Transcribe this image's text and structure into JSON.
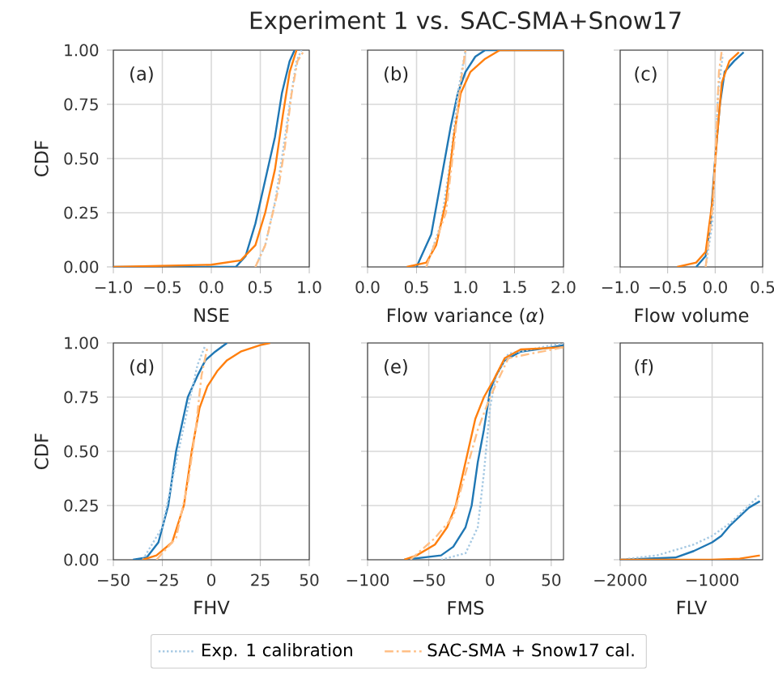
{
  "chart_data": [
    {
      "type": "line",
      "ylabel": "CDF",
      "xlabel": "NSE",
      "annotations": [
        "(a)"
      ],
      "grid": true,
      "xlim": [
        -1,
        1
      ],
      "xticks": [
        {
          "value": -1,
          "label": "−1.0"
        },
        {
          "value": -0.5,
          "label": "−0.5"
        },
        {
          "value": 0,
          "label": "0.0"
        },
        {
          "value": 0.5,
          "label": "0.5"
        },
        {
          "value": 1,
          "label": "1.0"
        }
      ],
      "ylim": [
        0,
        1
      ],
      "yticks": [
        {
          "value": 0,
          "label": "0.00"
        },
        {
          "value": 0.25,
          "label": "0.25"
        },
        {
          "value": 0.5,
          "label": "0.50"
        },
        {
          "value": 0.75,
          "label": "0.75"
        },
        {
          "value": 1,
          "label": "1.00"
        }
      ],
      "series": [
        {
          "color": "#1f77b4",
          "line_style": "solid",
          "x": [
            -1,
            0.25,
            0.35,
            0.45,
            0.55,
            0.65,
            0.72,
            0.8,
            0.85
          ],
          "values": [
            0,
            0,
            0.05,
            0.2,
            0.4,
            0.6,
            0.8,
            0.95,
            1
          ]
        },
        {
          "color": "#a6c9e3",
          "line_style": "dotted",
          "x": [
            0.45,
            0.55,
            0.65,
            0.72,
            0.8,
            0.87,
            0.92
          ],
          "values": [
            0,
            0.1,
            0.3,
            0.5,
            0.75,
            0.95,
            1
          ]
        },
        {
          "color": "#ff7f0e",
          "line_style": "solid",
          "x": [
            -1,
            0,
            0.3,
            0.45,
            0.55,
            0.65,
            0.73,
            0.8,
            0.87
          ],
          "values": [
            0,
            0.01,
            0.03,
            0.1,
            0.25,
            0.45,
            0.7,
            0.9,
            1
          ]
        },
        {
          "color": "#ffbf86",
          "line_style": "dashed",
          "x": [
            0.45,
            0.55,
            0.68,
            0.75,
            0.82,
            0.88,
            0.95
          ],
          "values": [
            0,
            0.1,
            0.35,
            0.55,
            0.8,
            0.95,
            1
          ]
        }
      ]
    },
    {
      "type": "line",
      "title": "Experiment 1 vs. SAC-SMA+Snow17",
      "xlabel": "Flow variance (*α*)",
      "annotations": [
        "(b)"
      ],
      "grid": true,
      "tick_labels": "x",
      "xlim": [
        0,
        2
      ],
      "xticks": [
        {
          "value": 0,
          "label": "0.0"
        },
        {
          "value": 0.5,
          "label": "0.5"
        },
        {
          "value": 1,
          "label": "1.0"
        },
        {
          "value": 1.5,
          "label": "1.5"
        },
        {
          "value": 2,
          "label": "2.0"
        }
      ],
      "ylim": [
        0,
        1
      ],
      "yticks": [
        {
          "value": 0,
          "label": null
        },
        {
          "value": 0.25,
          "label": null
        },
        {
          "value": 0.5,
          "label": null
        },
        {
          "value": 0.75,
          "label": null
        },
        {
          "value": 1,
          "label": null
        }
      ],
      "series": [
        {
          "color": "#1f77b4",
          "line_style": "solid",
          "x": [
            0.5,
            0.55,
            0.65,
            0.75,
            0.85,
            0.92,
            1.0,
            1.1,
            1.2,
            2
          ],
          "values": [
            0,
            0.05,
            0.15,
            0.4,
            0.65,
            0.8,
            0.9,
            0.97,
            1,
            1
          ]
        },
        {
          "color": "#a6c9e3",
          "line_style": "dotted",
          "x": [
            0.6,
            0.75,
            0.85,
            0.92,
            1.0
          ],
          "values": [
            0,
            0.2,
            0.5,
            0.8,
            1
          ]
        },
        {
          "color": "#ff7f0e",
          "line_style": "solid",
          "x": [
            0.4,
            0.6,
            0.7,
            0.8,
            0.88,
            0.95,
            1.05,
            1.2,
            1.35,
            2
          ],
          "values": [
            0,
            0.02,
            0.1,
            0.3,
            0.6,
            0.8,
            0.9,
            0.96,
            1,
            1
          ]
        },
        {
          "color": "#ffbf86",
          "line_style": "dashed",
          "x": [
            0.6,
            0.8,
            0.88,
            0.95,
            1.0
          ],
          "values": [
            0,
            0.25,
            0.55,
            0.85,
            1
          ]
        }
      ]
    },
    {
      "type": "line",
      "xlabel": "Flow volume",
      "annotations": [
        "(c)"
      ],
      "grid": true,
      "tick_labels": "x",
      "xlim": [
        -1,
        0.5
      ],
      "xticks": [
        {
          "value": -1,
          "label": "−1.0"
        },
        {
          "value": -0.5,
          "label": "−0.5"
        },
        {
          "value": 0,
          "label": "0.0"
        },
        {
          "value": 0.5,
          "label": "0.5"
        }
      ],
      "ylim": [
        0,
        1
      ],
      "yticks": [
        {
          "value": 0,
          "label": null
        },
        {
          "value": 0.25,
          "label": null
        },
        {
          "value": 0.5,
          "label": null
        },
        {
          "value": 0.75,
          "label": null
        },
        {
          "value": 1,
          "label": null
        }
      ],
      "series": [
        {
          "color": "#1f77b4",
          "line_style": "solid",
          "x": [
            -0.2,
            -0.1,
            -0.05,
            0,
            0.05,
            0.1,
            0.2,
            0.3
          ],
          "values": [
            0,
            0.05,
            0.2,
            0.5,
            0.75,
            0.9,
            0.95,
            0.99
          ]
        },
        {
          "color": "#a6c9e3",
          "line_style": "dotted",
          "x": [
            -0.1,
            -0.03,
            0,
            0.03,
            0.08
          ],
          "values": [
            0,
            0.2,
            0.5,
            0.8,
            0.98
          ]
        },
        {
          "color": "#ff7f0e",
          "line_style": "solid",
          "x": [
            -0.4,
            -0.2,
            -0.1,
            -0.03,
            0.02,
            0.07,
            0.15,
            0.25
          ],
          "values": [
            0,
            0.02,
            0.07,
            0.3,
            0.6,
            0.85,
            0.95,
            0.99
          ]
        },
        {
          "color": "#ffbf86",
          "line_style": "dashed",
          "x": [
            -0.1,
            -0.02,
            0.01,
            0.04,
            0.07
          ],
          "values": [
            0,
            0.3,
            0.6,
            0.9,
            1
          ]
        }
      ]
    },
    {
      "type": "line",
      "ylabel": "CDF",
      "xlabel": "FHV",
      "annotations": [
        "(d)"
      ],
      "grid": true,
      "xlim": [
        -50,
        50
      ],
      "xticks": [
        {
          "value": -50,
          "label": "−50"
        },
        {
          "value": -25,
          "label": "−25"
        },
        0,
        25,
        50
      ],
      "ylim": [
        0,
        1
      ],
      "yticks": [
        {
          "value": 0,
          "label": "0.00"
        },
        {
          "value": 0.25,
          "label": "0.25"
        },
        {
          "value": 0.5,
          "label": "0.50"
        },
        {
          "value": 0.75,
          "label": "0.75"
        },
        {
          "value": 1,
          "label": "1.00"
        }
      ],
      "series": [
        {
          "color": "#1f77b4",
          "line_style": "solid",
          "x": [
            -40,
            -33,
            -27,
            -22,
            -18,
            -12,
            -7,
            -3,
            2,
            8
          ],
          "values": [
            0,
            0.01,
            0.08,
            0.25,
            0.5,
            0.75,
            0.85,
            0.92,
            0.96,
            1
          ]
        },
        {
          "color": "#a6c9e3",
          "line_style": "dotted",
          "x": [
            -35,
            -25,
            -18,
            -12,
            -7,
            -3
          ],
          "values": [
            0,
            0.15,
            0.45,
            0.7,
            0.9,
            0.99
          ]
        },
        {
          "color": "#ff7f0e",
          "line_style": "solid",
          "x": [
            -35,
            -28,
            -20,
            -14,
            -10,
            -6,
            -2,
            3,
            8,
            15,
            25,
            30
          ],
          "values": [
            0,
            0.02,
            0.08,
            0.25,
            0.5,
            0.7,
            0.8,
            0.87,
            0.92,
            0.96,
            0.99,
            1
          ]
        },
        {
          "color": "#ffbf86",
          "line_style": "dashed",
          "x": [
            -28,
            -18,
            -12,
            -8,
            -5,
            -2
          ],
          "values": [
            0,
            0.1,
            0.35,
            0.6,
            0.85,
            0.98
          ]
        }
      ]
    },
    {
      "type": "line",
      "xlabel": "FMS",
      "annotations": [
        "(e)"
      ],
      "grid": true,
      "tick_labels": "x",
      "legend": "bottom",
      "xlim": [
        -100,
        60
      ],
      "xticks": [
        {
          "value": -100,
          "label": "−100"
        },
        {
          "value": -50,
          "label": "−50"
        },
        0,
        50
      ],
      "ylim": [
        0,
        1
      ],
      "yticks": [
        {
          "value": 0,
          "label": null
        },
        {
          "value": 0.25,
          "label": null
        },
        {
          "value": 0.5,
          "label": null
        },
        {
          "value": 0.75,
          "label": null
        },
        {
          "value": 1,
          "label": null
        }
      ],
      "series": [
        {
          "color": "#1f77b4",
          "line_style": "solid",
          "x": [
            -70,
            -40,
            -30,
            -20,
            -15,
            -10,
            -5,
            0,
            5,
            12,
            25,
            50,
            60
          ],
          "values": [
            0,
            0.02,
            0.06,
            0.15,
            0.25,
            0.45,
            0.6,
            0.78,
            0.85,
            0.92,
            0.96,
            0.98,
            0.99
          ]
        },
        {
          "name": "Exp. 1 calibration",
          "color": "#a6c9e3",
          "line_style": "dotted",
          "x": [
            -40,
            -20,
            -10,
            -5,
            0,
            5,
            15,
            60
          ],
          "values": [
            0,
            0.03,
            0.15,
            0.4,
            0.7,
            0.85,
            0.95,
            1
          ]
        },
        {
          "color": "#ff7f0e",
          "line_style": "solid",
          "x": [
            -70,
            -60,
            -45,
            -35,
            -28,
            -20,
            -12,
            -5,
            3,
            12,
            25,
            60
          ],
          "values": [
            0,
            0.02,
            0.07,
            0.15,
            0.25,
            0.45,
            0.65,
            0.75,
            0.83,
            0.93,
            0.97,
            0.98
          ]
        },
        {
          "name": "SAC-SMA + Snow17 cal.",
          "color": "#ffbf86",
          "line_style": "dashed",
          "x": [
            -65,
            -45,
            -30,
            -20,
            -10,
            0,
            15,
            60
          ],
          "values": [
            0,
            0.1,
            0.2,
            0.4,
            0.6,
            0.75,
            0.93,
            0.98
          ]
        }
      ]
    },
    {
      "type": "line",
      "xlabel": "FLV",
      "annotations": [
        "(f)"
      ],
      "grid": true,
      "tick_labels": "x",
      "xlim": [
        -2000,
        -450
      ],
      "xticks": [
        {
          "value": -2000,
          "label": "−2000"
        },
        {
          "value": -1000,
          "label": "−1000"
        }
      ],
      "ylim": [
        0,
        1
      ],
      "yticks": [
        {
          "value": 0,
          "label": null
        },
        {
          "value": 0.25,
          "label": null
        },
        {
          "value": 0.5,
          "label": null
        },
        {
          "value": 0.75,
          "label": null
        },
        {
          "value": 1,
          "label": null
        }
      ],
      "series": [
        {
          "color": "#1f77b4",
          "line_style": "solid",
          "x": [
            -2000,
            -1700,
            -1400,
            -1200,
            -1000,
            -900,
            -800,
            -700,
            -600,
            -480
          ],
          "values": [
            0,
            0.005,
            0.01,
            0.04,
            0.08,
            0.11,
            0.16,
            0.2,
            0.24,
            0.27
          ]
        },
        {
          "color": "#a6c9e3",
          "line_style": "dotted",
          "x": [
            -2000,
            -1600,
            -1200,
            -1000,
            -800,
            -600,
            -480
          ],
          "values": [
            0,
            0.02,
            0.07,
            0.11,
            0.17,
            0.25,
            0.3
          ]
        },
        {
          "color": "#ff7f0e",
          "line_style": "solid",
          "x": [
            -2000,
            -1000,
            -700,
            -480
          ],
          "values": [
            0,
            0,
            0.005,
            0.02
          ]
        }
      ]
    }
  ]
}
